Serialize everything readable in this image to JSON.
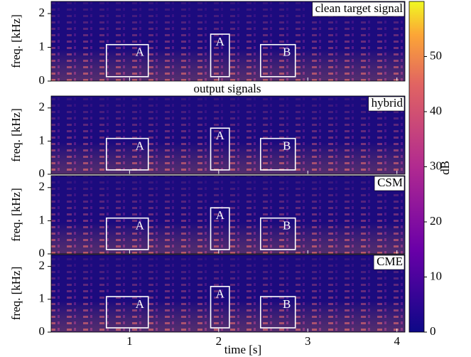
{
  "chart_data": {
    "type": "spectrogram",
    "subtitle": "output signals",
    "xlabel": "time [s]",
    "ylabel": "freq. [kHz]",
    "xlim": [
      0.12,
      4.09
    ],
    "xticks": [
      1,
      2,
      3,
      4
    ],
    "ylim": [
      0,
      2.36
    ],
    "yticks": [
      0,
      1,
      2
    ],
    "panels": [
      {
        "label": "clean target signal"
      },
      {
        "label": "hybrid"
      },
      {
        "label": "CSM"
      },
      {
        "label": "CME"
      }
    ],
    "boxes": [
      {
        "label": "A",
        "x": [
          0.74,
          1.21
        ],
        "y": [
          0.13,
          1.08
        ]
      },
      {
        "label": "A",
        "x": [
          1.91,
          2.12
        ],
        "y": [
          0.13,
          1.39
        ]
      },
      {
        "label": "B",
        "x": [
          2.47,
          2.86
        ],
        "y": [
          0.13,
          1.08
        ]
      }
    ],
    "colorbar": {
      "label": "dB",
      "lim": [
        0,
        60
      ],
      "ticks": [
        0,
        10,
        20,
        30,
        40,
        50
      ]
    }
  }
}
